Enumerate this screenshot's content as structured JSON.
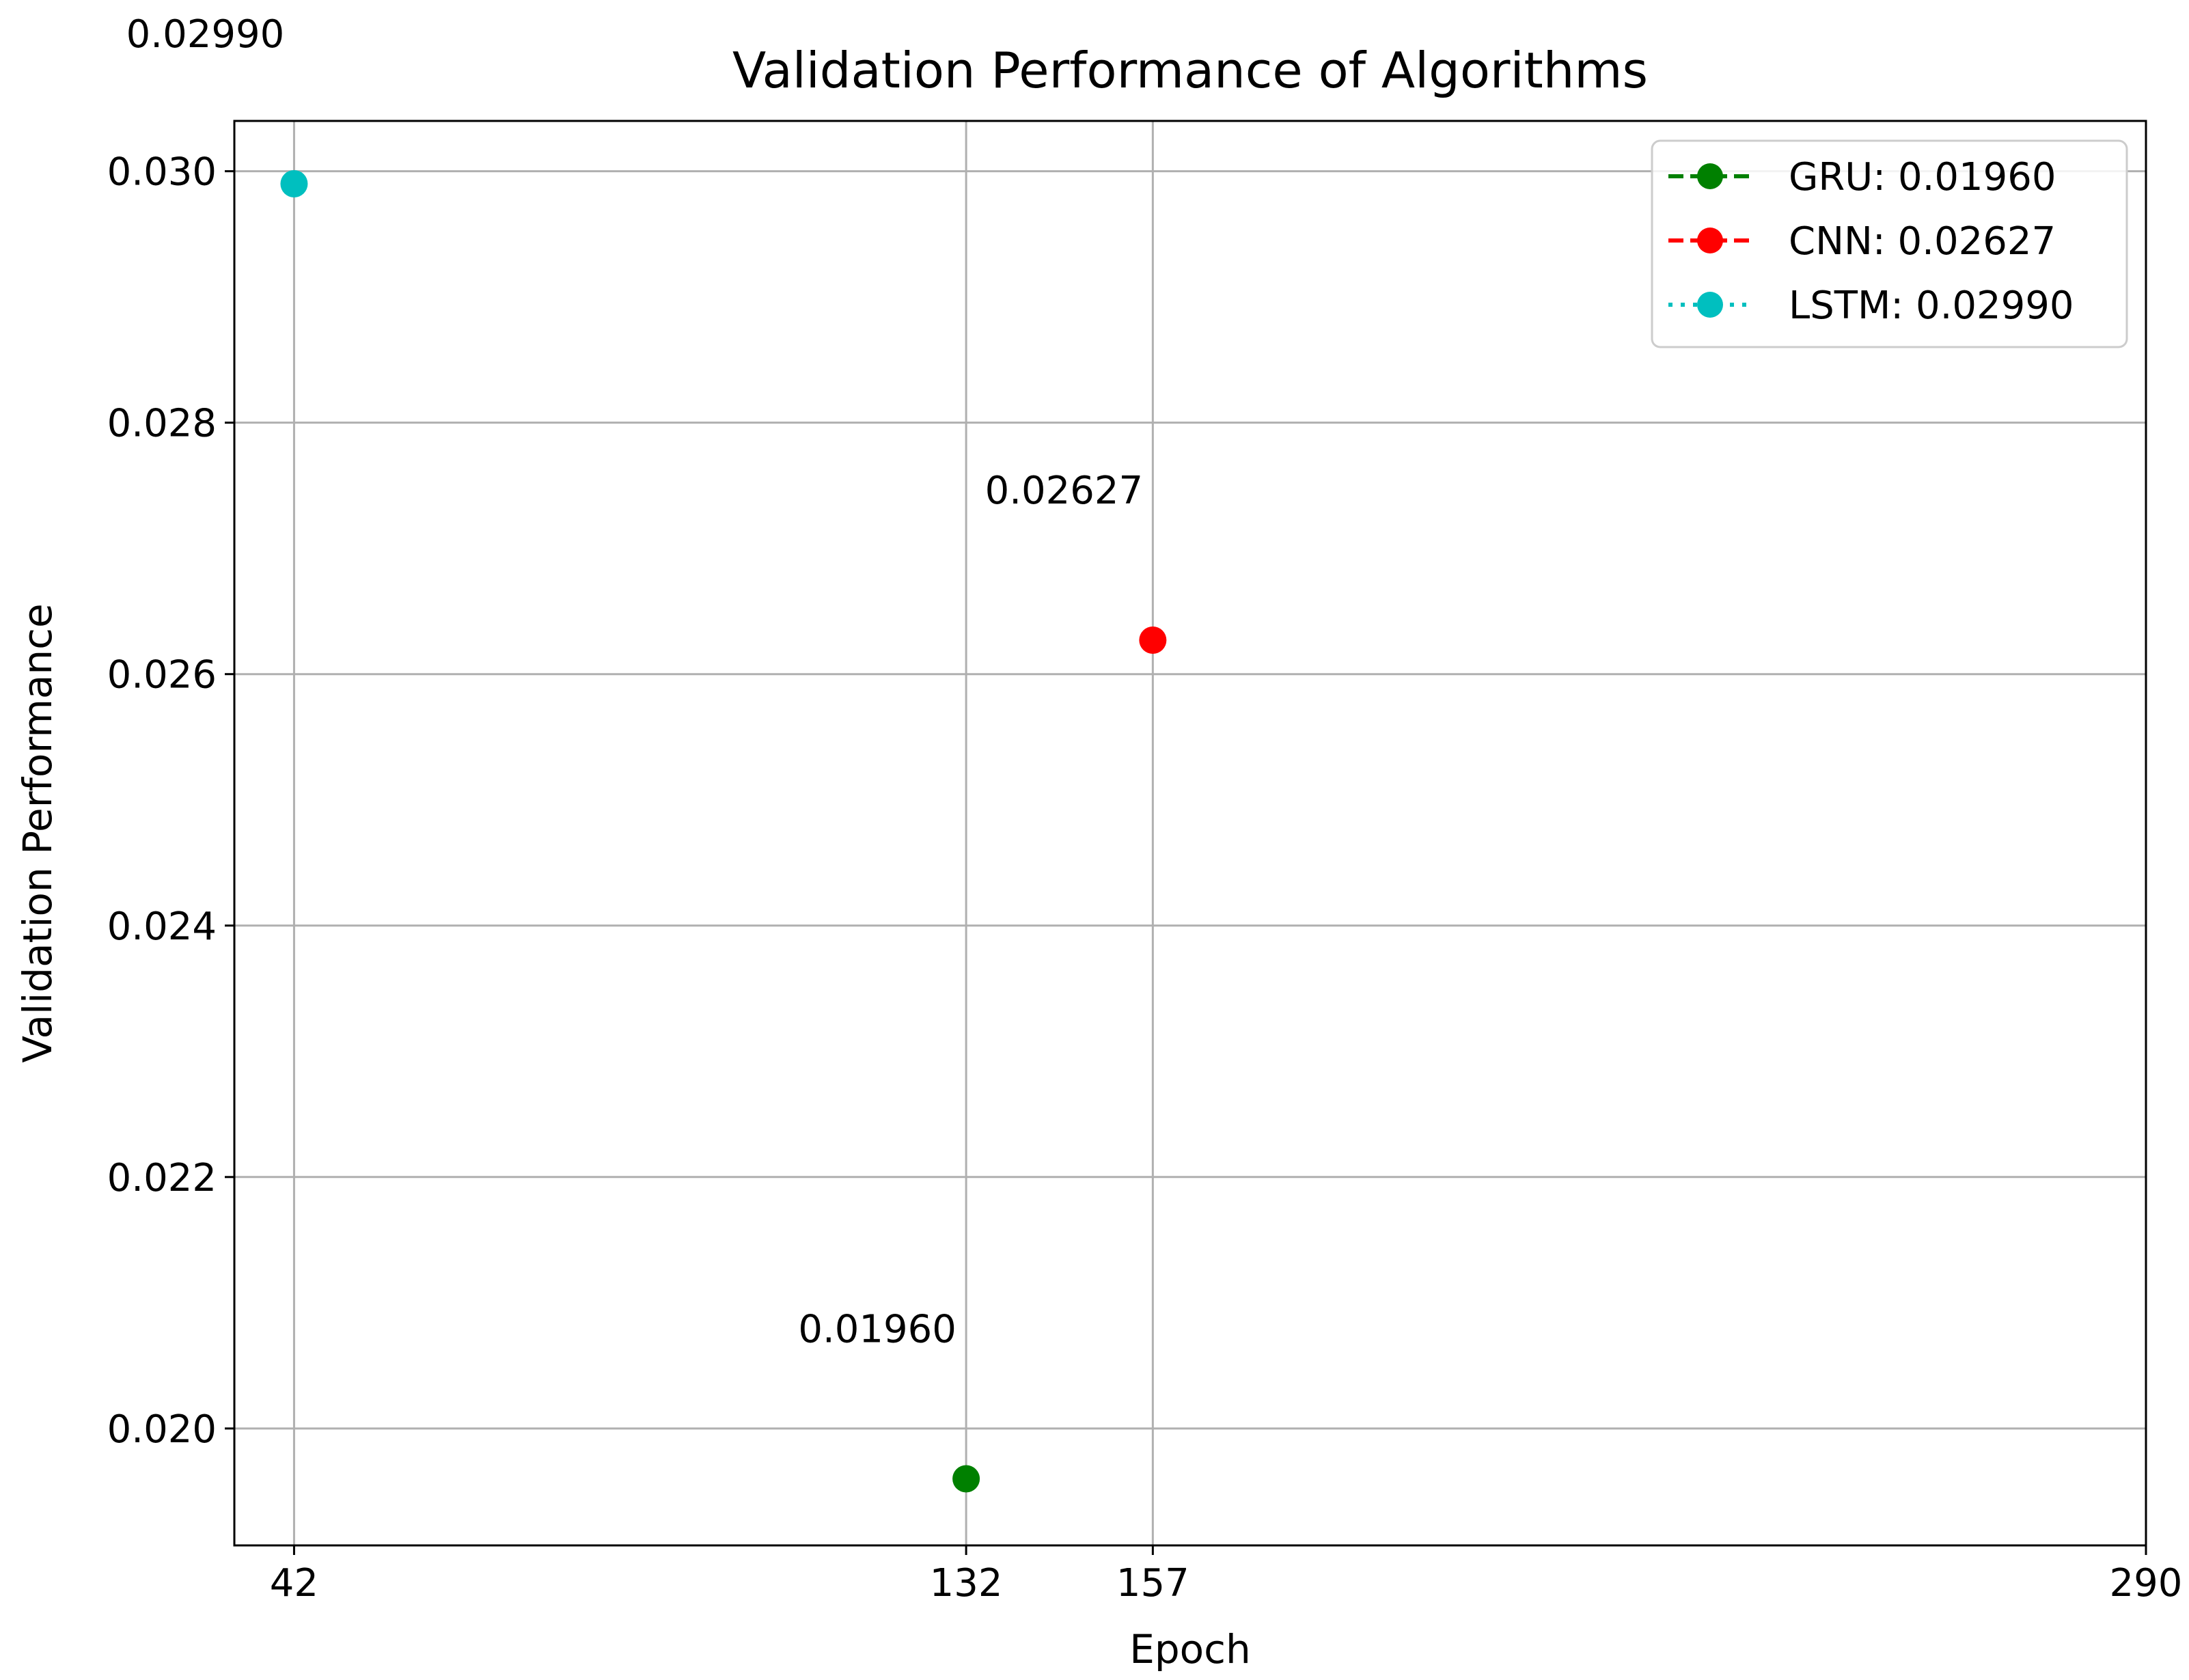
{
  "chart_data": {
    "type": "scatter",
    "title": "Validation Performance of Algorithms",
    "xlabel": "Epoch",
    "ylabel": "Validation Performance",
    "xlim": [
      34,
      290
    ],
    "ylim": [
      0.01907,
      0.0304
    ],
    "xticks": [
      42,
      132,
      157,
      290
    ],
    "xtick_labels": [
      "42",
      "132",
      "157",
      "290"
    ],
    "yticks": [
      0.02,
      0.022,
      0.024,
      0.026,
      0.028,
      0.03
    ],
    "ytick_labels": [
      "0.020",
      "0.022",
      "0.024",
      "0.026",
      "0.028",
      "0.030"
    ],
    "grid": true,
    "legend_position": "top-right",
    "series": [
      {
        "name": "GRU: 0.01960",
        "color": "#008000",
        "line_style": "dashed",
        "x": [
          132
        ],
        "y": [
          0.0196
        ],
        "point_label": "0.01960"
      },
      {
        "name": "CNN: 0.02627",
        "color": "#ff0000",
        "line_style": "dashed",
        "x": [
          157
        ],
        "y": [
          0.02627
        ],
        "point_label": "0.02627"
      },
      {
        "name": "LSTM: 0.02990",
        "color": "#00bfbf",
        "line_style": "dotted",
        "x": [
          42
        ],
        "y": [
          0.0299
        ],
        "point_label": "0.02990"
      }
    ]
  }
}
